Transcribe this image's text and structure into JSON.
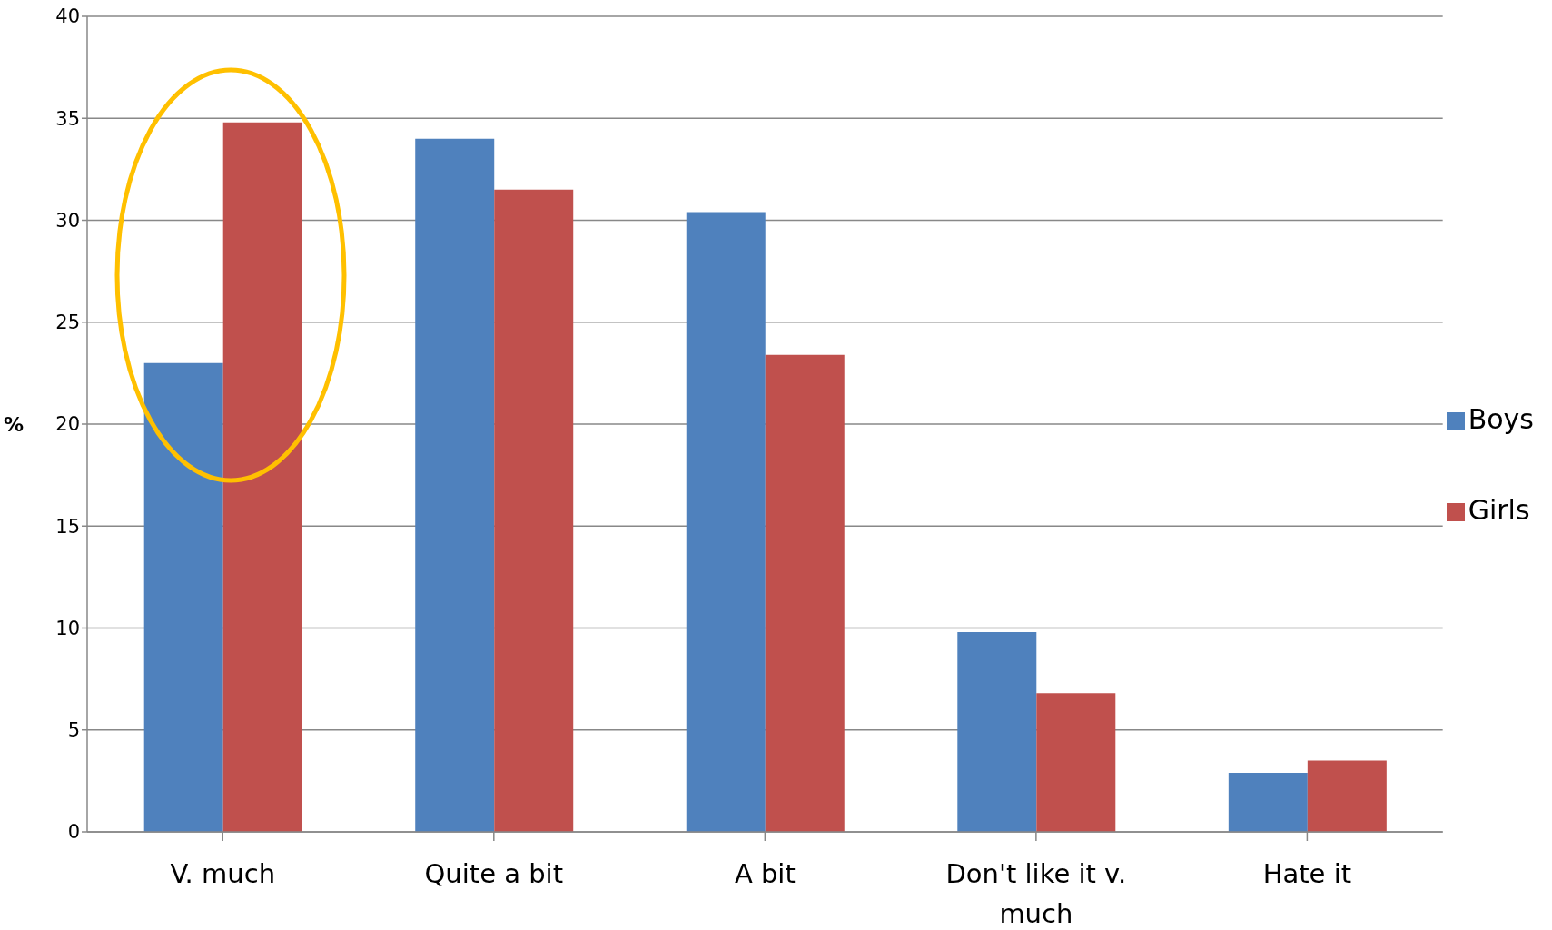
{
  "chart_data": {
    "type": "bar",
    "ylabel": "%",
    "categories": [
      "V. much",
      "Quite a bit",
      "A bit",
      "Don't like it v. much",
      "Hate it"
    ],
    "series": [
      {
        "name": "Boys",
        "color": "#4f81bd",
        "values": [
          23,
          34,
          30.4,
          9.8,
          2.9
        ]
      },
      {
        "name": "Girls",
        "color": "#c0504d",
        "values": [
          34.8,
          31.5,
          23.4,
          6.8,
          3.5
        ]
      }
    ],
    "ylim": [
      0,
      40
    ],
    "yticks": [
      0,
      5,
      10,
      15,
      20,
      25,
      30,
      35,
      40
    ],
    "grid": "y",
    "legend": "right"
  }
}
